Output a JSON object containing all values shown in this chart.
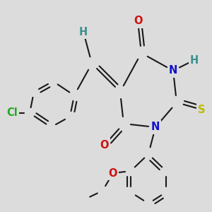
{
  "background_color": "#dcdcdc",
  "bond_color": "#1a1a1a",
  "bond_width": 1.5,
  "atom_colors": {
    "C": "#1a1a1a",
    "H_teal": "#3d9090",
    "N": "#1010cc",
    "O": "#cc1010",
    "S": "#bbbb00",
    "Cl": "#22aa22"
  },
  "font_size_atom": 10.5
}
